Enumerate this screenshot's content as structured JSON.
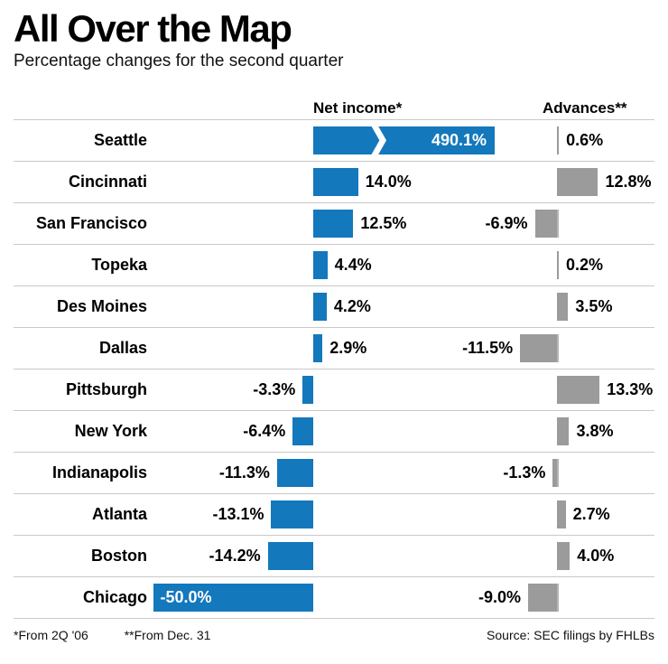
{
  "title": "All Over the Map",
  "subtitle": "Percentage changes for the second quarter",
  "columns": {
    "net_income": "Net income*",
    "advances": "Advances**"
  },
  "footnotes": {
    "note1": "*From 2Q '06",
    "note2": "**From Dec. 31",
    "source": "Source: SEC filings by FHLBs"
  },
  "colors": {
    "net_income_bar": "#1478bc",
    "advances_bar": "#9b9b9b",
    "row_rule": "#c9c9c9",
    "inside_label_text": "#ffffff",
    "zero_line": "#b5b5b5"
  },
  "icons": {
    "truncation_break": "white-zigzag-chevron"
  },
  "chart_data": {
    "type": "bar",
    "orientation": "horizontal",
    "unit": "%",
    "title": "All Over the Map",
    "subtitle": "Percentage changes for the second quarter",
    "xlabel": "",
    "ylabel": "",
    "grid": false,
    "legend_position": "column-headers-top",
    "categories": [
      "Seattle",
      "Cincinnati",
      "San Francisco",
      "Topeka",
      "Des Moines",
      "Dallas",
      "Pittsburgh",
      "New York",
      "Indianapolis",
      "Atlanta",
      "Boston",
      "Chicago"
    ],
    "series": [
      {
        "name": "Net income*",
        "values": [
          490.1,
          14.0,
          12.5,
          4.4,
          4.2,
          2.9,
          -3.3,
          -6.4,
          -11.3,
          -13.1,
          -14.2,
          -50.0
        ],
        "labels": [
          "490.1%",
          "14.0%",
          "12.5%",
          "4.4%",
          "4.2%",
          "2.9%",
          "-3.3%",
          "-6.4%",
          "-11.3%",
          "-13.1%",
          "-14.2%",
          "-50.0%"
        ]
      },
      {
        "name": "Advances**",
        "values": [
          0.6,
          12.8,
          -6.9,
          0.2,
          3.5,
          -11.5,
          13.3,
          3.8,
          -1.3,
          2.7,
          4.0,
          -9.0
        ],
        "labels": [
          "0.6%",
          "12.8%",
          "-6.9%",
          "0.2%",
          "3.5%",
          "-11.5%",
          "13.3%",
          "3.8%",
          "-1.3%",
          "2.7%",
          "4.0%",
          "-9.0%"
        ]
      }
    ],
    "inside_label_rows": [
      0,
      11
    ],
    "truncated_rows": [
      0
    ]
  }
}
